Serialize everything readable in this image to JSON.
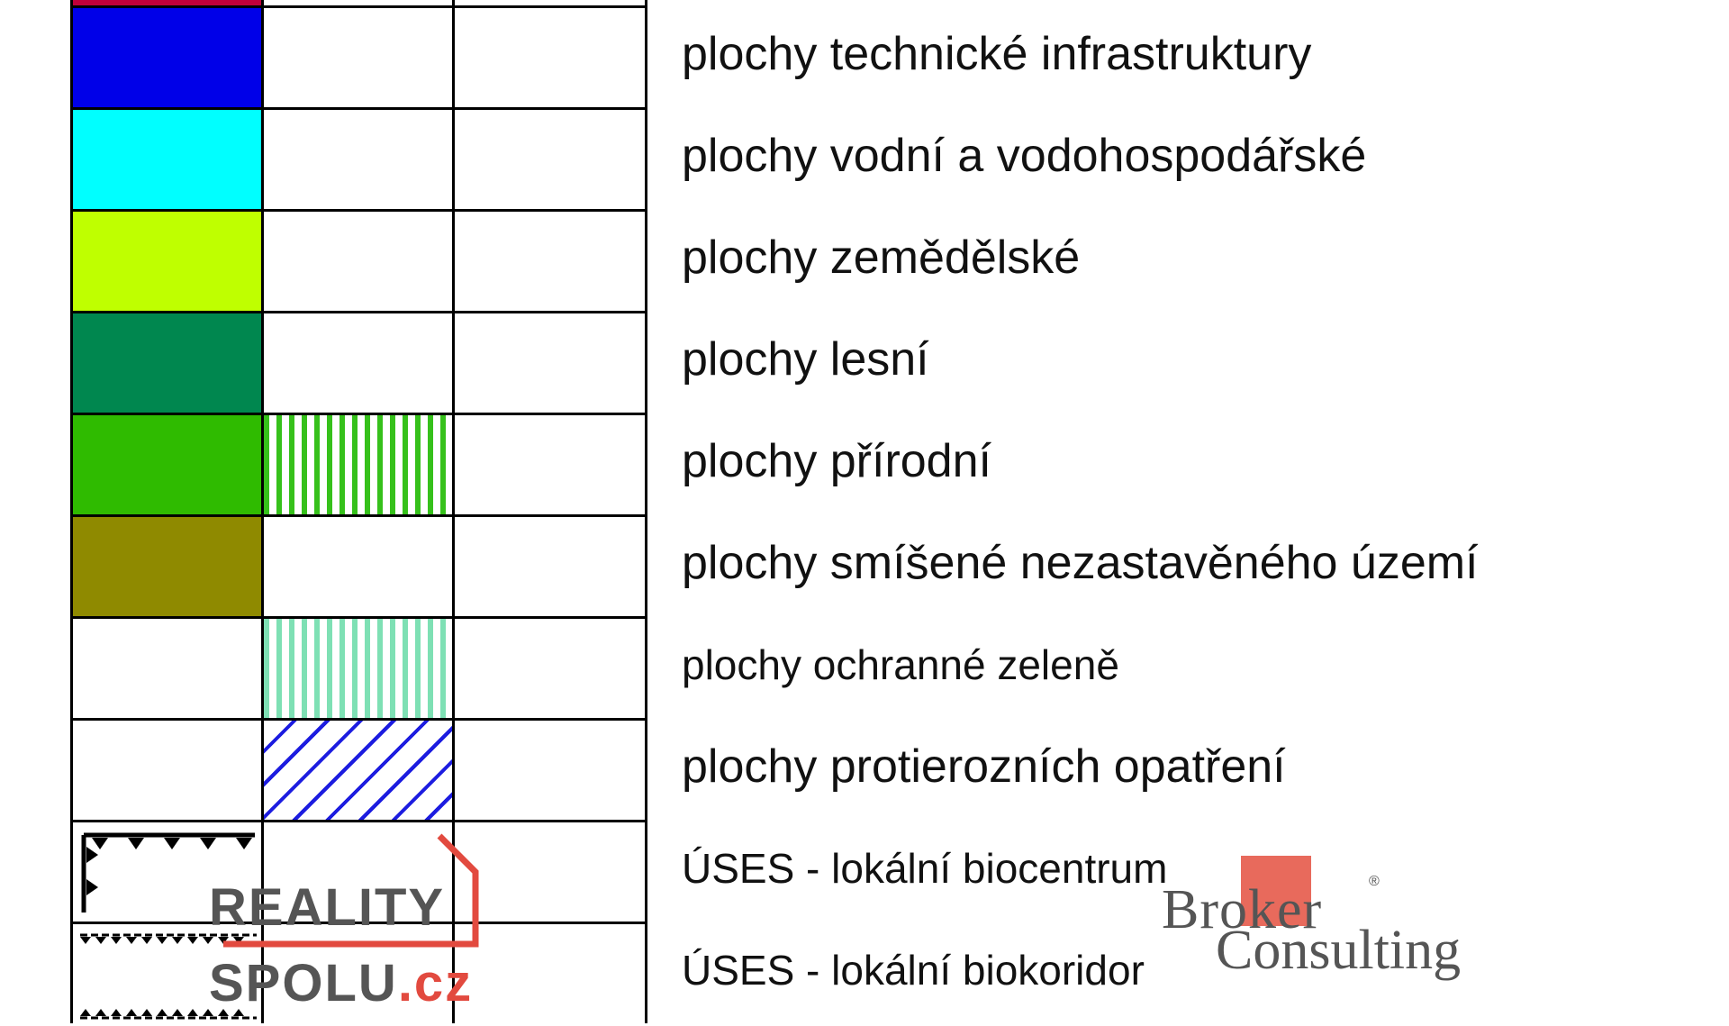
{
  "legend": {
    "rows": [
      {
        "label": "plochy technické infrastruktury",
        "fill_color": "#0000e8",
        "pattern": null
      },
      {
        "label": "plochy vodní a vodohospodářské",
        "fill_color": "#00ffff",
        "pattern": null
      },
      {
        "label": "plochy zemědělské",
        "fill_color": "#bfff00",
        "pattern": null
      },
      {
        "label": "plochy lesní",
        "fill_color": "#00874f",
        "pattern": null
      },
      {
        "label": "plochy přírodní",
        "fill_color": "#2fbb00",
        "pattern": "green-vertical-stripes"
      },
      {
        "label": "plochy smíšené nezastavěného území",
        "fill_color": "#8f8a00",
        "pattern": null
      },
      {
        "label": "plochy ochranné zeleně",
        "fill_color": null,
        "pattern": "mint-vertical-stripes"
      },
      {
        "label": "plochy protierozních opatření",
        "fill_color": null,
        "pattern": "blue-diagonal-hatch"
      },
      {
        "label": "ÚSES - lokální biocentrum",
        "fill_color": null,
        "pattern": "biocentrum-symbol"
      },
      {
        "label": "ÚSES - lokální biokoridor",
        "fill_color": null,
        "pattern": "biokoridor-symbol"
      }
    ]
  },
  "watermarks": {
    "reality_spolu": {
      "line1": "REALITY",
      "line2": "SPOLU",
      "tld": ".cz"
    },
    "broker_consulting": {
      "line1": "Broker",
      "line2": "Consulting",
      "reg": "®"
    }
  },
  "colors": {
    "top_strip": "#c0003a",
    "green_stripe": "#36c11b",
    "mint_stripe": "#7ee0b4",
    "blue_hatch": "#1c1ce0",
    "accent_red": "#e24a3f"
  }
}
